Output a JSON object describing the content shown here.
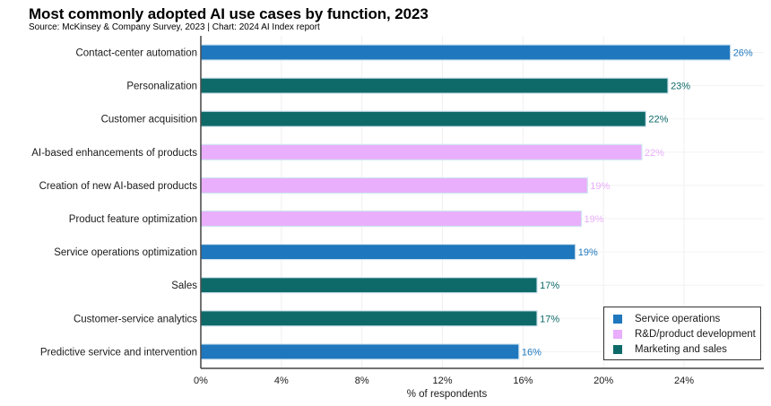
{
  "title": "Most commonly adopted AI use cases by function, 2023",
  "subtitle": "Source: McKinsey & Company Survey, 2023 | Chart: 2024 AI Index report",
  "chart_data": {
    "type": "bar",
    "orientation": "horizontal",
    "title": "Most commonly adopted AI use cases by function, 2023",
    "subtitle": "Source: McKinsey & Company Survey, 2023 | Chart: 2024 AI Index report",
    "xlabel": "% of respondents",
    "ylabel": "",
    "xlim": [
      0,
      28
    ],
    "xticks": [
      0,
      4,
      8,
      12,
      16,
      20,
      24
    ],
    "xtick_labels": [
      "0%",
      "4%",
      "8%",
      "12%",
      "16%",
      "20%",
      "24%"
    ],
    "grid": true,
    "legend_position": "bottom-right",
    "series_colors": {
      "Service operations": "#1f77bd",
      "R&D/product development": "#e9aefc",
      "Marketing and sales": "#0e6a69"
    },
    "categories": [
      "Contact-center automation",
      "Personalization",
      "Customer acquisition",
      "AI-based enhancements of products",
      "Creation of new AI-based products",
      "Product feature optimization",
      "Service operations optimization",
      "Sales",
      "Customer-service analytics",
      "Predictive service and intervention"
    ],
    "values": [
      26.3,
      23.2,
      22.1,
      21.9,
      19.2,
      18.9,
      18.6,
      16.7,
      16.7,
      15.8
    ],
    "data_labels": [
      "26%",
      "23%",
      "22%",
      "22%",
      "19%",
      "19%",
      "19%",
      "17%",
      "17%",
      "16%"
    ],
    "functions": [
      "Service operations",
      "Marketing and sales",
      "Marketing and sales",
      "R&D/product development",
      "R&D/product development",
      "R&D/product development",
      "Service operations",
      "Marketing and sales",
      "Marketing and sales",
      "Service operations"
    ],
    "legend": [
      {
        "label": "Service operations",
        "color": "#1f77bd"
      },
      {
        "label": "R&D/product development",
        "color": "#e9aefc"
      },
      {
        "label": "Marketing and sales",
        "color": "#0e6a69"
      }
    ]
  }
}
